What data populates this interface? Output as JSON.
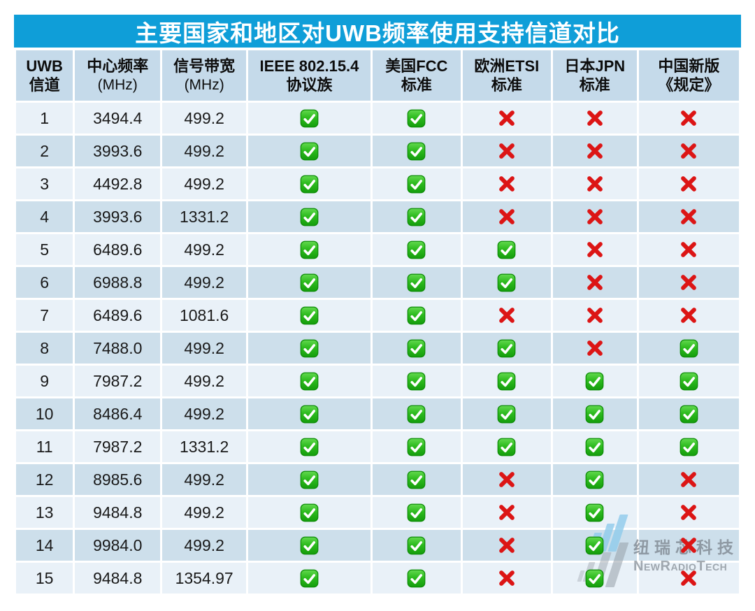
{
  "title": "主要国家和地区对UWB频率使用支持信道对比",
  "colors": {
    "title_bar": "#0f9ed8",
    "header_bg": "#c5daea",
    "row_odd": "#e9f1f8",
    "row_even": "#cddfeb",
    "check_green": "#17a70e",
    "cross_red": "#dc1515"
  },
  "table": {
    "headers": [
      {
        "line1": "UWB",
        "line2": "信道"
      },
      {
        "line1": "中心频率",
        "line2": "(MHz)"
      },
      {
        "line1": "信号带宽",
        "line2": "(MHz)"
      },
      {
        "line1": "IEEE 802.15.4",
        "line2": "协议族"
      },
      {
        "line1": "美国FCC",
        "line2": "标准"
      },
      {
        "line1": "欧洲ETSI",
        "line2": "标准"
      },
      {
        "line1": "日本JPN",
        "line2": "标准"
      },
      {
        "line1": "中国新版",
        "line2": "《规定》"
      }
    ],
    "rows": [
      {
        "channel": "1",
        "freq": "3494.4",
        "bw": "499.2",
        "marks": [
          true,
          true,
          false,
          false,
          false
        ]
      },
      {
        "channel": "2",
        "freq": "3993.6",
        "bw": "499.2",
        "marks": [
          true,
          true,
          false,
          false,
          false
        ]
      },
      {
        "channel": "3",
        "freq": "4492.8",
        "bw": "499.2",
        "marks": [
          true,
          true,
          false,
          false,
          false
        ]
      },
      {
        "channel": "4",
        "freq": "3993.6",
        "bw": "1331.2",
        "marks": [
          true,
          true,
          false,
          false,
          false
        ]
      },
      {
        "channel": "5",
        "freq": "6489.6",
        "bw": "499.2",
        "marks": [
          true,
          true,
          true,
          false,
          false
        ]
      },
      {
        "channel": "6",
        "freq": "6988.8",
        "bw": "499.2",
        "marks": [
          true,
          true,
          true,
          false,
          false
        ]
      },
      {
        "channel": "7",
        "freq": "6489.6",
        "bw": "1081.6",
        "marks": [
          true,
          true,
          false,
          false,
          false
        ]
      },
      {
        "channel": "8",
        "freq": "7488.0",
        "bw": "499.2",
        "marks": [
          true,
          true,
          true,
          false,
          true
        ]
      },
      {
        "channel": "9",
        "freq": "7987.2",
        "bw": "499.2",
        "marks": [
          true,
          true,
          true,
          true,
          true
        ]
      },
      {
        "channel": "10",
        "freq": "8486.4",
        "bw": "499.2",
        "marks": [
          true,
          true,
          true,
          true,
          true
        ]
      },
      {
        "channel": "11",
        "freq": "7987.2",
        "bw": "1331.2",
        "marks": [
          true,
          true,
          true,
          true,
          true
        ]
      },
      {
        "channel": "12",
        "freq": "8985.6",
        "bw": "499.2",
        "marks": [
          true,
          true,
          false,
          true,
          false
        ]
      },
      {
        "channel": "13",
        "freq": "9484.8",
        "bw": "499.2",
        "marks": [
          true,
          true,
          false,
          true,
          false
        ]
      },
      {
        "channel": "14",
        "freq": "9984.0",
        "bw": "499.2",
        "marks": [
          true,
          true,
          false,
          true,
          false
        ]
      },
      {
        "channel": "15",
        "freq": "9484.8",
        "bw": "1354.97",
        "marks": [
          true,
          true,
          false,
          true,
          false
        ]
      }
    ]
  },
  "chart_data": {
    "type": "table",
    "title": "主要国家和地区对UWB频率使用支持信道对比",
    "columns": [
      "UWB信道",
      "中心频率(MHz)",
      "信号带宽(MHz)",
      "IEEE 802.15.4协议族",
      "美国FCC标准",
      "欧洲ETSI标准",
      "日本JPN标准",
      "中国新版《规定》"
    ],
    "rows": [
      [
        1,
        3494.4,
        499.2,
        "✅",
        "✅",
        "❌",
        "❌",
        "❌"
      ],
      [
        2,
        3993.6,
        499.2,
        "✅",
        "✅",
        "❌",
        "❌",
        "❌"
      ],
      [
        3,
        4492.8,
        499.2,
        "✅",
        "✅",
        "❌",
        "❌",
        "❌"
      ],
      [
        4,
        3993.6,
        1331.2,
        "✅",
        "✅",
        "❌",
        "❌",
        "❌"
      ],
      [
        5,
        6489.6,
        499.2,
        "✅",
        "✅",
        "✅",
        "❌",
        "❌"
      ],
      [
        6,
        6988.8,
        499.2,
        "✅",
        "✅",
        "✅",
        "❌",
        "❌"
      ],
      [
        7,
        6489.6,
        1081.6,
        "✅",
        "✅",
        "❌",
        "❌",
        "❌"
      ],
      [
        8,
        7488.0,
        499.2,
        "✅",
        "✅",
        "✅",
        "❌",
        "✅"
      ],
      [
        9,
        7987.2,
        499.2,
        "✅",
        "✅",
        "✅",
        "✅",
        "✅"
      ],
      [
        10,
        8486.4,
        499.2,
        "✅",
        "✅",
        "✅",
        "✅",
        "✅"
      ],
      [
        11,
        7987.2,
        1331.2,
        "✅",
        "✅",
        "✅",
        "✅",
        "✅"
      ],
      [
        12,
        8985.6,
        499.2,
        "✅",
        "✅",
        "❌",
        "✅",
        "❌"
      ],
      [
        13,
        9484.8,
        499.2,
        "✅",
        "✅",
        "❌",
        "✅",
        "❌"
      ],
      [
        14,
        9984.0,
        499.2,
        "✅",
        "✅",
        "❌",
        "✅",
        "❌"
      ],
      [
        15,
        9484.8,
        1354.97,
        "✅",
        "✅",
        "❌",
        "✅",
        "❌"
      ]
    ]
  },
  "watermark": {
    "cn": "纽瑞芯科技",
    "en": "NewRadioTech"
  }
}
